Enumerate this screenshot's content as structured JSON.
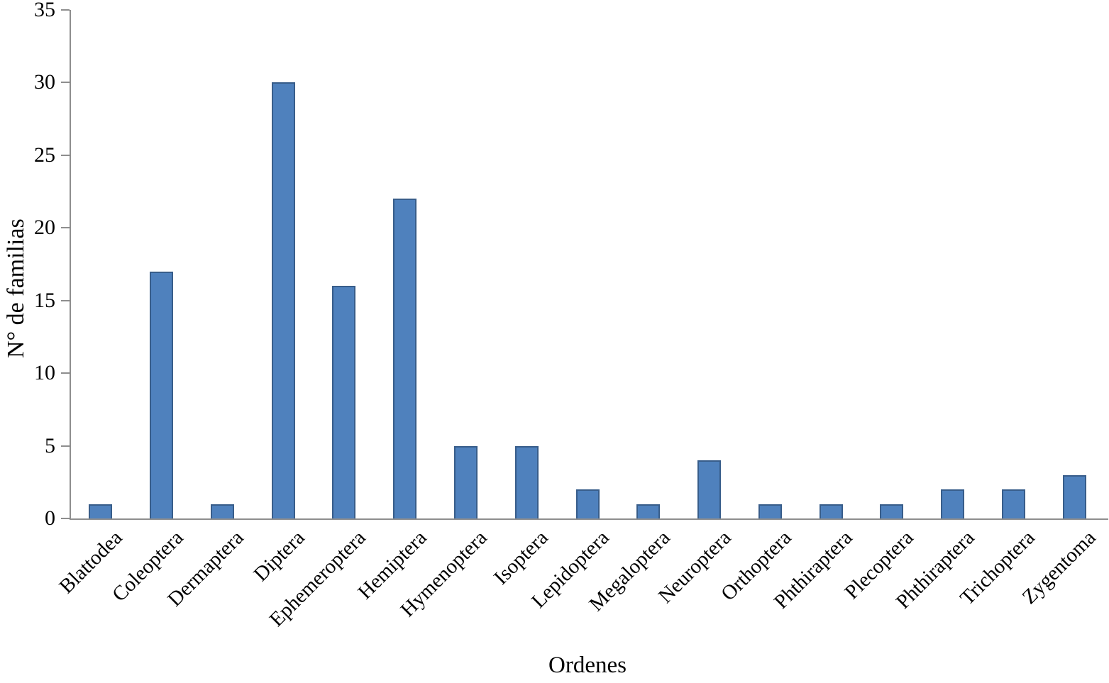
{
  "chart_data": {
    "type": "bar",
    "title": "",
    "xlabel": "Ordenes",
    "ylabel": "N° de familias",
    "categories": [
      "Blattodea",
      "Coleoptera",
      "Dermaptera",
      "Diptera",
      "Ephemeroptera",
      "Hemiptera",
      "Hymenoptera",
      "Isoptera",
      "Lepidoptera",
      "Megaloptera",
      "Neuroptera",
      "Orthoptera",
      "Phthiraptera",
      "Plecoptera",
      "Phthiraptera",
      "Trichoptera",
      "Zygentoma"
    ],
    "values": [
      1,
      17,
      1,
      30,
      16,
      22,
      5,
      5,
      2,
      1,
      4,
      1,
      1,
      1,
      2,
      2,
      3
    ],
    "ylim": [
      0,
      35
    ],
    "yticks": [
      0,
      5,
      10,
      15,
      20,
      25,
      30,
      35
    ],
    "grid": false,
    "legend": "none",
    "x_label_rotation_deg": 45,
    "bar_color": "#4F81BD",
    "bar_border_color": "#385D8A",
    "axis_color": "#8E8E8E",
    "text_color": "#000000"
  }
}
